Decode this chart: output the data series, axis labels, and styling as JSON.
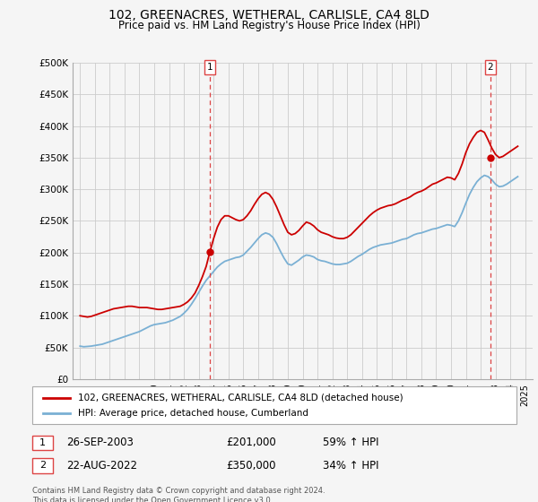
{
  "title": "102, GREENACRES, WETHERAL, CARLISLE, CA4 8LD",
  "subtitle": "Price paid vs. HM Land Registry's House Price Index (HPI)",
  "ylabel_ticks": [
    0,
    50000,
    100000,
    150000,
    200000,
    250000,
    300000,
    350000,
    400000,
    450000,
    500000
  ],
  "ylabel_labels": [
    "£0",
    "£50K",
    "£100K",
    "£150K",
    "£200K",
    "£250K",
    "£300K",
    "£350K",
    "£400K",
    "£450K",
    "£500K"
  ],
  "ylim": [
    0,
    500000
  ],
  "xlim_start": 1994.5,
  "xlim_end": 2025.5,
  "transaction1_x": 2003.73,
  "transaction1_y": 201000,
  "transaction2_x": 2022.64,
  "transaction2_y": 350000,
  "red_line_color": "#cc0000",
  "blue_line_color": "#7ab0d4",
  "dashed_line_color": "#dd4444",
  "bg_color": "#f5f5f5",
  "plot_bg_color": "#f5f5f5",
  "grid_color": "#cccccc",
  "legend1_text": "102, GREENACRES, WETHERAL, CARLISLE, CA4 8LD (detached house)",
  "legend2_text": "HPI: Average price, detached house, Cumberland",
  "annotation1_label": "1",
  "annotation1_date": "26-SEP-2003",
  "annotation1_price": "£201,000",
  "annotation1_hpi": "59% ↑ HPI",
  "annotation2_label": "2",
  "annotation2_date": "22-AUG-2022",
  "annotation2_price": "£350,000",
  "annotation2_hpi": "34% ↑ HPI",
  "footer": "Contains HM Land Registry data © Crown copyright and database right 2024.\nThis data is licensed under the Open Government Licence v3.0.",
  "hpi_data_x": [
    1995.0,
    1995.25,
    1995.5,
    1995.75,
    1996.0,
    1996.25,
    1996.5,
    1996.75,
    1997.0,
    1997.25,
    1997.5,
    1997.75,
    1998.0,
    1998.25,
    1998.5,
    1998.75,
    1999.0,
    1999.25,
    1999.5,
    1999.75,
    2000.0,
    2000.25,
    2000.5,
    2000.75,
    2001.0,
    2001.25,
    2001.5,
    2001.75,
    2002.0,
    2002.25,
    2002.5,
    2002.75,
    2003.0,
    2003.25,
    2003.5,
    2003.75,
    2004.0,
    2004.25,
    2004.5,
    2004.75,
    2005.0,
    2005.25,
    2005.5,
    2005.75,
    2006.0,
    2006.25,
    2006.5,
    2006.75,
    2007.0,
    2007.25,
    2007.5,
    2007.75,
    2008.0,
    2008.25,
    2008.5,
    2008.75,
    2009.0,
    2009.25,
    2009.5,
    2009.75,
    2010.0,
    2010.25,
    2010.5,
    2010.75,
    2011.0,
    2011.25,
    2011.5,
    2011.75,
    2012.0,
    2012.25,
    2012.5,
    2012.75,
    2013.0,
    2013.25,
    2013.5,
    2013.75,
    2014.0,
    2014.25,
    2014.5,
    2014.75,
    2015.0,
    2015.25,
    2015.5,
    2015.75,
    2016.0,
    2016.25,
    2016.5,
    2016.75,
    2017.0,
    2017.25,
    2017.5,
    2017.75,
    2018.0,
    2018.25,
    2018.5,
    2018.75,
    2019.0,
    2019.25,
    2019.5,
    2019.75,
    2020.0,
    2020.25,
    2020.5,
    2020.75,
    2021.0,
    2021.25,
    2021.5,
    2021.75,
    2022.0,
    2022.25,
    2022.5,
    2022.75,
    2023.0,
    2023.25,
    2023.5,
    2023.75,
    2024.0,
    2024.25,
    2024.5
  ],
  "hpi_data_y": [
    52000,
    51000,
    51500,
    52000,
    53000,
    54000,
    55000,
    57000,
    59000,
    61000,
    63000,
    65000,
    67000,
    69000,
    71000,
    73000,
    75000,
    78000,
    81000,
    84000,
    86000,
    87000,
    88000,
    89000,
    91000,
    93000,
    96000,
    99000,
    104000,
    110000,
    118000,
    127000,
    137000,
    147000,
    156000,
    163000,
    170000,
    177000,
    182000,
    186000,
    188000,
    190000,
    192000,
    193000,
    196000,
    202000,
    208000,
    215000,
    222000,
    228000,
    231000,
    229000,
    224000,
    214000,
    202000,
    191000,
    182000,
    180000,
    184000,
    188000,
    193000,
    196000,
    195000,
    193000,
    189000,
    187000,
    186000,
    184000,
    182000,
    181000,
    181000,
    182000,
    183000,
    186000,
    190000,
    194000,
    197000,
    201000,
    205000,
    208000,
    210000,
    212000,
    213000,
    214000,
    215000,
    217000,
    219000,
    221000,
    222000,
    225000,
    228000,
    230000,
    231000,
    233000,
    235000,
    237000,
    238000,
    240000,
    242000,
    244000,
    243000,
    241000,
    250000,
    263000,
    278000,
    292000,
    303000,
    312000,
    318000,
    322000,
    320000,
    315000,
    308000,
    304000,
    305000,
    308000,
    312000,
    316000,
    320000
  ],
  "price_data_x": [
    1995.0,
    1995.25,
    1995.5,
    1995.75,
    1996.0,
    1996.25,
    1996.5,
    1996.75,
    1997.0,
    1997.25,
    1997.5,
    1997.75,
    1998.0,
    1998.25,
    1998.5,
    1998.75,
    1999.0,
    1999.25,
    1999.5,
    1999.75,
    2000.0,
    2000.25,
    2000.5,
    2000.75,
    2001.0,
    2001.25,
    2001.5,
    2001.75,
    2002.0,
    2002.25,
    2002.5,
    2002.75,
    2003.0,
    2003.25,
    2003.5,
    2003.75,
    2004.0,
    2004.25,
    2004.5,
    2004.75,
    2005.0,
    2005.25,
    2005.5,
    2005.75,
    2006.0,
    2006.25,
    2006.5,
    2006.75,
    2007.0,
    2007.25,
    2007.5,
    2007.75,
    2008.0,
    2008.25,
    2008.5,
    2008.75,
    2009.0,
    2009.25,
    2009.5,
    2009.75,
    2010.0,
    2010.25,
    2010.5,
    2010.75,
    2011.0,
    2011.25,
    2011.5,
    2011.75,
    2012.0,
    2012.25,
    2012.5,
    2012.75,
    2013.0,
    2013.25,
    2013.5,
    2013.75,
    2014.0,
    2014.25,
    2014.5,
    2014.75,
    2015.0,
    2015.25,
    2015.5,
    2015.75,
    2016.0,
    2016.25,
    2016.5,
    2016.75,
    2017.0,
    2017.25,
    2017.5,
    2017.75,
    2018.0,
    2018.25,
    2018.5,
    2018.75,
    2019.0,
    2019.25,
    2019.5,
    2019.75,
    2020.0,
    2020.25,
    2020.5,
    2020.75,
    2021.0,
    2021.25,
    2021.5,
    2021.75,
    2022.0,
    2022.25,
    2022.5,
    2022.75,
    2023.0,
    2023.25,
    2023.5,
    2023.75,
    2024.0,
    2024.25,
    2024.5
  ],
  "price_data_y": [
    100000,
    99000,
    98000,
    99000,
    101000,
    103000,
    105000,
    107000,
    109000,
    111000,
    112000,
    113000,
    114000,
    115000,
    115000,
    114000,
    113000,
    113000,
    113000,
    112000,
    111000,
    110000,
    110000,
    111000,
    112000,
    113000,
    114000,
    115000,
    118000,
    122000,
    128000,
    136000,
    148000,
    162000,
    178000,
    201000,
    222000,
    240000,
    252000,
    258000,
    258000,
    255000,
    252000,
    250000,
    252000,
    258000,
    266000,
    276000,
    285000,
    292000,
    295000,
    292000,
    284000,
    272000,
    258000,
    244000,
    232000,
    228000,
    230000,
    235000,
    242000,
    248000,
    246000,
    242000,
    236000,
    232000,
    230000,
    228000,
    225000,
    223000,
    222000,
    222000,
    224000,
    228000,
    234000,
    240000,
    246000,
    252000,
    258000,
    263000,
    267000,
    270000,
    272000,
    274000,
    275000,
    277000,
    280000,
    283000,
    285000,
    288000,
    292000,
    295000,
    297000,
    300000,
    304000,
    308000,
    310000,
    313000,
    316000,
    319000,
    318000,
    315000,
    325000,
    340000,
    358000,
    372000,
    382000,
    390000,
    393000,
    390000,
    378000,
    365000,
    355000,
    350000,
    352000,
    356000,
    360000,
    364000,
    368000
  ]
}
